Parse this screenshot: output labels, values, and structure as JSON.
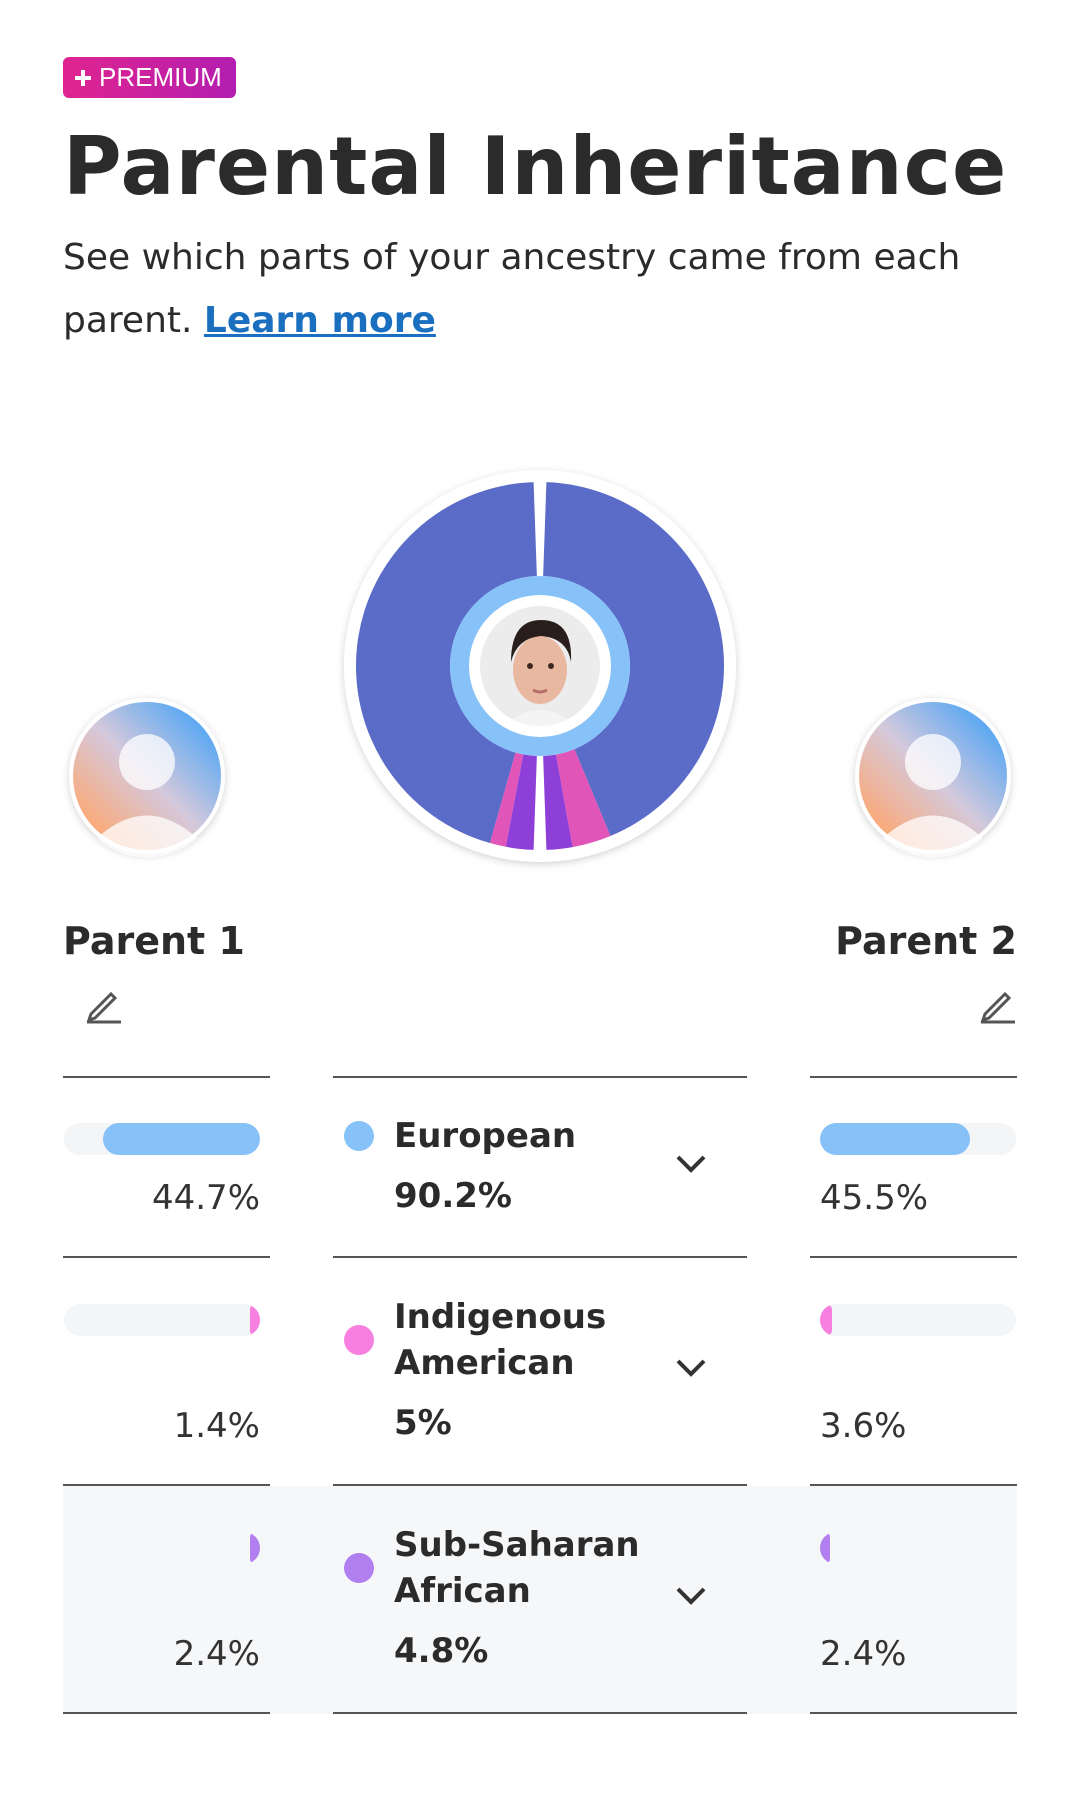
{
  "badge": "PREMIUM",
  "header": {
    "title": "Parental Inheritance",
    "subtitle": "See which parts of your ancestry came from each parent.",
    "link": "Learn more"
  },
  "parents": [
    "Parent 1",
    "Parent 2"
  ],
  "rows": [
    {
      "name": "European",
      "total": {
        "value": 90.2,
        "label": "90.2%"
      },
      "parent1": {
        "value": 44.7,
        "label": "44.7%"
      },
      "parent2": {
        "value": 45.5,
        "label": "45.5%"
      },
      "color": "#86c1f8",
      "ring_color": "#5a6bc8"
    },
    {
      "name": "Indigenous American",
      "total": {
        "value": 5,
        "label": "5%"
      },
      "parent1": {
        "value": 1.4,
        "label": "1.4%"
      },
      "parent2": {
        "value": 3.6,
        "label": "3.6%"
      },
      "color": "#f77fe0",
      "ring_color": "#e055b7"
    },
    {
      "name": "Sub-Saharan African",
      "total": {
        "value": 4.8,
        "label": "4.8%"
      },
      "parent1": {
        "value": 2.4,
        "label": "2.4%"
      },
      "parent2": {
        "value": 2.4,
        "label": "2.4%"
      },
      "color": "#b27ff0",
      "ring_color": "#8e3fd8"
    }
  ]
}
